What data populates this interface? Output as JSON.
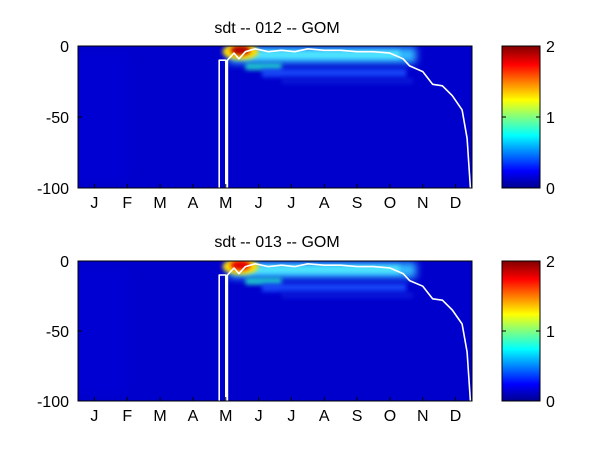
{
  "chart_data": [
    {
      "type": "heatmap",
      "title": "sdt -- 012 -- GOM",
      "xlabel": "",
      "ylabel": "",
      "x_tick_labels": [
        "J",
        "F",
        "M",
        "A",
        "M",
        "J",
        "J",
        "A",
        "S",
        "O",
        "N",
        "D"
      ],
      "y_ticks": [
        0,
        -50,
        -100
      ],
      "y_tick_labels": [
        "0",
        "-50",
        "-100"
      ],
      "ylim": [
        -100,
        0
      ],
      "colorbar": {
        "ticks": [
          0,
          1,
          2
        ],
        "tick_labels": [
          "0",
          "1",
          "2"
        ],
        "range": [
          0,
          2
        ],
        "colormap": "jet"
      },
      "background_value": 0.15,
      "hotspot": {
        "month": "May",
        "depth": -3,
        "value": 1.9
      },
      "contour": [
        {
          "month": 4.3,
          "depth": -100
        },
        {
          "month": 4.3,
          "depth": -10
        },
        {
          "month": 4.5,
          "depth": -10
        },
        {
          "month": 4.5,
          "depth": -100
        },
        {
          "month": 4.55,
          "depth": -100
        },
        {
          "month": 4.55,
          "depth": -10
        },
        {
          "month": 4.75,
          "depth": -5
        },
        {
          "month": 4.9,
          "depth": -9
        },
        {
          "month": 5.1,
          "depth": -4
        },
        {
          "month": 5.4,
          "depth": -2
        },
        {
          "month": 5.8,
          "depth": -4
        },
        {
          "month": 6.2,
          "depth": -3
        },
        {
          "month": 6.6,
          "depth": -4
        },
        {
          "month": 7.0,
          "depth": -2
        },
        {
          "month": 7.5,
          "depth": -3
        },
        {
          "month": 8.0,
          "depth": -3
        },
        {
          "month": 8.5,
          "depth": -4
        },
        {
          "month": 9.0,
          "depth": -4
        },
        {
          "month": 9.5,
          "depth": -5
        },
        {
          "month": 9.9,
          "depth": -9
        },
        {
          "month": 10.1,
          "depth": -14
        },
        {
          "month": 10.5,
          "depth": -18
        },
        {
          "month": 10.8,
          "depth": -27
        },
        {
          "month": 11.1,
          "depth": -28
        },
        {
          "month": 11.4,
          "depth": -35
        },
        {
          "month": 11.7,
          "depth": -45
        },
        {
          "month": 11.85,
          "depth": -65
        },
        {
          "month": 11.95,
          "depth": -100
        }
      ]
    },
    {
      "type": "heatmap",
      "title": "sdt -- 013 -- GOM",
      "xlabel": "",
      "ylabel": "",
      "x_tick_labels": [
        "J",
        "F",
        "M",
        "A",
        "M",
        "J",
        "J",
        "A",
        "S",
        "O",
        "N",
        "D"
      ],
      "y_ticks": [
        0,
        -50,
        -100
      ],
      "y_tick_labels": [
        "0",
        "-50",
        "-100"
      ],
      "ylim": [
        -100,
        0
      ],
      "colorbar": {
        "ticks": [
          0,
          1,
          2
        ],
        "tick_labels": [
          "0",
          "1",
          "2"
        ],
        "range": [
          0,
          2
        ],
        "colormap": "jet"
      },
      "background_value": 0.15,
      "hotspot": {
        "month": "May",
        "depth": -3,
        "value": 1.8
      },
      "contour": [
        {
          "month": 4.3,
          "depth": -100
        },
        {
          "month": 4.3,
          "depth": -10
        },
        {
          "month": 4.5,
          "depth": -10
        },
        {
          "month": 4.5,
          "depth": -100
        },
        {
          "month": 4.55,
          "depth": -100
        },
        {
          "month": 4.55,
          "depth": -10
        },
        {
          "month": 4.75,
          "depth": -5
        },
        {
          "month": 4.9,
          "depth": -9
        },
        {
          "month": 5.1,
          "depth": -4
        },
        {
          "month": 5.4,
          "depth": -2
        },
        {
          "month": 5.8,
          "depth": -4
        },
        {
          "month": 6.2,
          "depth": -3
        },
        {
          "month": 6.6,
          "depth": -4
        },
        {
          "month": 7.0,
          "depth": -2
        },
        {
          "month": 7.5,
          "depth": -3
        },
        {
          "month": 8.0,
          "depth": -3
        },
        {
          "month": 8.5,
          "depth": -4
        },
        {
          "month": 9.0,
          "depth": -4
        },
        {
          "month": 9.5,
          "depth": -5
        },
        {
          "month": 9.9,
          "depth": -9
        },
        {
          "month": 10.1,
          "depth": -14
        },
        {
          "month": 10.5,
          "depth": -18
        },
        {
          "month": 10.8,
          "depth": -27
        },
        {
          "month": 11.1,
          "depth": -28
        },
        {
          "month": 11.4,
          "depth": -35
        },
        {
          "month": 11.7,
          "depth": -45
        },
        {
          "month": 11.85,
          "depth": -65
        },
        {
          "month": 11.95,
          "depth": -100
        }
      ]
    }
  ]
}
